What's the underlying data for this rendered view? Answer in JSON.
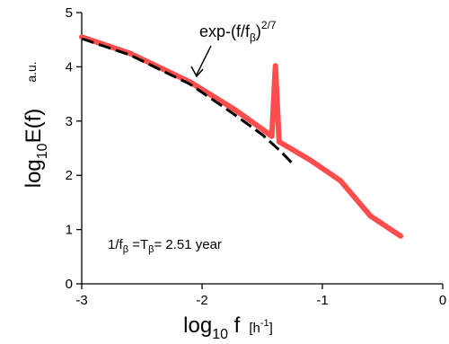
{
  "chart_data": {
    "type": "line",
    "xlabel": {
      "main": "log",
      "sub": "10",
      "var": " f",
      "unit_open": "[h",
      "unit_exp": "-1",
      "unit_close": "]"
    },
    "ylabel": {
      "main": "log",
      "sub": "10",
      "var": "E(f)",
      "unit": "a.u."
    },
    "xlim": [
      -3,
      0
    ],
    "ylim": [
      0,
      5
    ],
    "xticks": [
      -3,
      -2,
      -1,
      0
    ],
    "yticks": [
      0,
      1,
      2,
      3,
      4,
      5
    ],
    "series": [
      {
        "style": "solid",
        "color": "#ff4d4d",
        "points": [
          [
            -3.0,
            4.55
          ],
          [
            -2.6,
            4.25
          ],
          [
            -2.1,
            3.72
          ],
          [
            -1.72,
            3.2
          ],
          [
            -1.48,
            2.82
          ],
          [
            -1.42,
            2.72
          ],
          [
            -1.39,
            4.02
          ],
          [
            -1.36,
            2.62
          ],
          [
            -1.1,
            2.28
          ],
          [
            -0.85,
            1.9
          ],
          [
            -0.6,
            1.25
          ],
          [
            -0.35,
            0.88
          ]
        ]
      },
      {
        "style": "dashed",
        "color": "#000000",
        "points": [
          [
            -3.0,
            4.52
          ],
          [
            -2.6,
            4.22
          ],
          [
            -2.1,
            3.68
          ],
          [
            -1.75,
            3.15
          ],
          [
            -1.5,
            2.75
          ],
          [
            -1.35,
            2.45
          ],
          [
            -1.25,
            2.22
          ]
        ]
      }
    ],
    "annotations": {
      "fit": {
        "prefix": "exp-(f/f",
        "sub": "β",
        "suffix": ")",
        "sup": "2/7"
      },
      "period": {
        "a": "1/f",
        "a_sub": "β",
        "b": " =T",
        "b_sub": "β",
        "c": "= 2.51 year"
      }
    }
  }
}
